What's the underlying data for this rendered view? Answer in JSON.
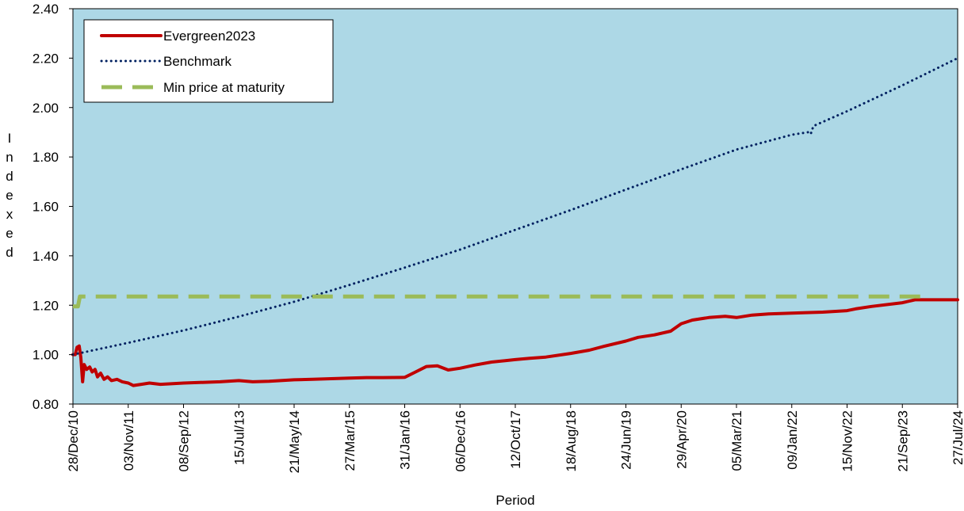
{
  "colors": {
    "plot_background": "#add8e6",
    "evergreen": "#c00000",
    "benchmark": "#002060",
    "min_price": "#9bbb59"
  },
  "chart_data": {
    "type": "line",
    "xlabel": "Period",
    "ylabel": "Indexed",
    "ylim": [
      0.8,
      2.4
    ],
    "yticks": [
      "0.80",
      "1.00",
      "1.20",
      "1.40",
      "1.60",
      "1.80",
      "2.00",
      "2.20",
      "2.40"
    ],
    "xlim": [
      "2010-12-28",
      "2024-07-27"
    ],
    "xticks": [
      "28/Dec/10",
      "03/Nov/11",
      "08/Sep/12",
      "15/Jul/13",
      "21/May/14",
      "27/Mar/15",
      "31/Jan/16",
      "06/Dec/16",
      "12/Oct/17",
      "18/Aug/18",
      "24/Jun/19",
      "29/Apr/20",
      "05/Mar/21",
      "09/Jan/22",
      "15/Nov/22",
      "21/Sep/23",
      "27/Jul/24"
    ],
    "grid": false,
    "legend_position": "top-left",
    "series": [
      {
        "name": "Evergreen2023",
        "style": "solid",
        "x": [
          "2010-12-28",
          "2011-01-10",
          "2011-01-20",
          "2011-02-01",
          "2011-02-10",
          "2011-02-20",
          "2011-03-01",
          "2011-03-15",
          "2011-04-01",
          "2011-04-15",
          "2011-05-01",
          "2011-05-15",
          "2011-06-01",
          "2011-06-20",
          "2011-07-10",
          "2011-08-01",
          "2011-09-01",
          "2011-10-01",
          "2011-11-03",
          "2011-12-01",
          "2012-01-15",
          "2012-03-01",
          "2012-05-01",
          "2012-07-01",
          "2012-09-08",
          "2013-01-01",
          "2013-04-01",
          "2013-07-15",
          "2013-10-01",
          "2014-01-01",
          "2014-05-21",
          "2014-09-01",
          "2015-01-01",
          "2015-03-27",
          "2015-07-01",
          "2015-10-01",
          "2016-01-31",
          "2016-04-01",
          "2016-06-01",
          "2016-08-01",
          "2016-10-01",
          "2016-12-06",
          "2017-03-01",
          "2017-06-01",
          "2017-10-12",
          "2018-01-01",
          "2018-04-01",
          "2018-08-18",
          "2018-12-01",
          "2019-03-01",
          "2019-06-24",
          "2019-09-01",
          "2019-12-01",
          "2020-03-01",
          "2020-04-29",
          "2020-07-01",
          "2020-10-01",
          "2021-01-01",
          "2021-03-05",
          "2021-06-01",
          "2021-09-01",
          "2022-01-09",
          "2022-04-01",
          "2022-07-01",
          "2022-11-15",
          "2023-01-01",
          "2023-04-01",
          "2023-09-21",
          "2023-12-01",
          "2024-03-01",
          "2024-07-27"
        ],
        "values": [
          1.0,
          1.0,
          1.03,
          1.035,
          0.99,
          0.89,
          0.96,
          0.94,
          0.95,
          0.93,
          0.94,
          0.91,
          0.925,
          0.9,
          0.91,
          0.895,
          0.9,
          0.89,
          0.885,
          0.875,
          0.88,
          0.885,
          0.88,
          0.882,
          0.885,
          0.888,
          0.89,
          0.895,
          0.89,
          0.892,
          0.898,
          0.9,
          0.903,
          0.905,
          0.907,
          0.907,
          0.908,
          0.93,
          0.952,
          0.955,
          0.938,
          0.945,
          0.958,
          0.97,
          0.98,
          0.985,
          0.99,
          1.005,
          1.018,
          1.035,
          1.055,
          1.07,
          1.08,
          1.095,
          1.125,
          1.14,
          1.15,
          1.155,
          1.15,
          1.16,
          1.165,
          1.168,
          1.17,
          1.172,
          1.178,
          1.185,
          1.195,
          1.21,
          1.222,
          1.222,
          1.222
        ]
      },
      {
        "name": "Benchmark",
        "style": "dotted",
        "x": [
          "2010-12-28",
          "2011-11-03",
          "2012-09-08",
          "2013-07-15",
          "2014-05-21",
          "2015-03-27",
          "2016-01-31",
          "2016-12-06",
          "2017-10-12",
          "2018-08-18",
          "2019-06-24",
          "2020-04-29",
          "2021-03-05",
          "2022-01-09",
          "2022-04-10",
          "2022-04-25",
          "2022-05-10",
          "2022-11-15",
          "2023-09-21",
          "2024-07-27"
        ],
        "values": [
          1.0,
          1.048,
          1.098,
          1.154,
          1.214,
          1.282,
          1.352,
          1.425,
          1.505,
          1.585,
          1.668,
          1.75,
          1.83,
          1.89,
          1.9,
          1.892,
          1.925,
          1.985,
          2.09,
          2.2
        ]
      },
      {
        "name": "Min price at maturity",
        "style": "dashed",
        "x": [
          "2010-12-28",
          "2011-01-25",
          "2011-02-05",
          "2024-01-15"
        ],
        "values": [
          1.195,
          1.195,
          1.235,
          1.235
        ]
      }
    ]
  }
}
